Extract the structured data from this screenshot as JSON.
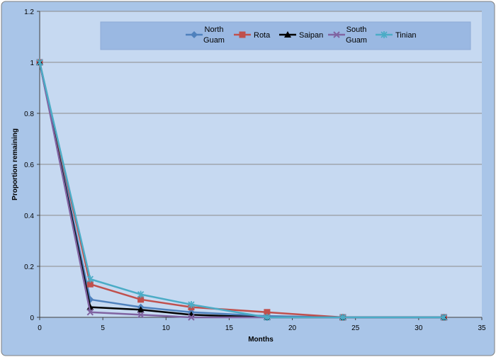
{
  "chart_data": {
    "type": "line",
    "title": "",
    "xlabel": "Months",
    "ylabel": "Proportion remaining",
    "xlim": [
      0,
      35
    ],
    "ylim": [
      0,
      1.2
    ],
    "xticks": [
      0,
      5,
      10,
      15,
      20,
      25,
      30,
      35
    ],
    "yticks": [
      0,
      0.2,
      0.4,
      0.6,
      0.8,
      1,
      1.2
    ],
    "grid": "horizontal",
    "legend_position": "top",
    "colors": {
      "frame_bg": "#a9c5e8",
      "plot_bg": "#c6d9f1",
      "legend_bg": "#9ab8e2",
      "gridline": "#8c8c8c"
    },
    "series": [
      {
        "name": "North Guam",
        "color": "#4f81bd",
        "marker": "diamond",
        "x": [
          0,
          4,
          8,
          12,
          18,
          24,
          32
        ],
        "y": [
          1,
          0.07,
          0.04,
          0.02,
          0.005,
          0,
          0
        ]
      },
      {
        "name": "Rota",
        "color": "#c0504d",
        "marker": "square",
        "x": [
          0,
          4,
          8,
          12,
          18,
          24,
          32
        ],
        "y": [
          1,
          0.13,
          0.07,
          0.04,
          0.02,
          0,
          0
        ]
      },
      {
        "name": "Saipan",
        "color": "#000000",
        "marker": "triangle",
        "x": [
          0,
          4,
          8,
          12,
          18,
          24,
          32
        ],
        "y": [
          1,
          0.04,
          0.03,
          0.01,
          0,
          0,
          0
        ]
      },
      {
        "name": "South Guam",
        "color": "#8064a2",
        "marker": "x",
        "x": [
          0,
          4,
          8,
          12,
          18,
          24,
          32
        ],
        "y": [
          1,
          0.02,
          0.01,
          0,
          0,
          0,
          0
        ]
      },
      {
        "name": "Tinian",
        "color": "#4bacc6",
        "marker": "star",
        "x": [
          0,
          4,
          8,
          12,
          18,
          24,
          32
        ],
        "y": [
          1,
          0.15,
          0.09,
          0.05,
          0,
          0,
          0
        ]
      }
    ]
  }
}
